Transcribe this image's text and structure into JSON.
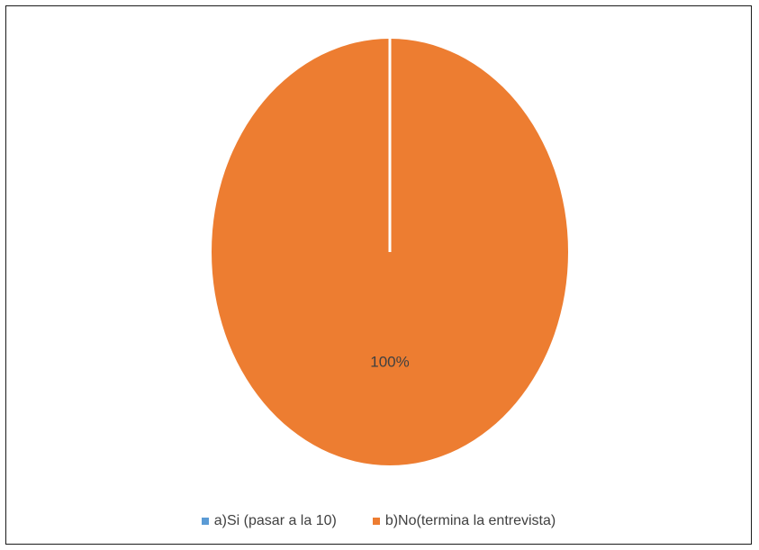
{
  "chart_data": {
    "type": "pie",
    "title": "",
    "categories": [
      "a)Si (pasar a la 10)",
      "b)No(termina la entrevista)"
    ],
    "values": [
      0,
      100
    ],
    "colors": [
      "#5B9BD5",
      "#ED7D31"
    ],
    "data_labels": [
      "",
      "100%"
    ],
    "legend_position": "bottom"
  },
  "legend": {
    "items": [
      {
        "label": "a)Si (pasar a la 10)",
        "color": "#5B9BD5"
      },
      {
        "label": "b)No(termina la entrevista)",
        "color": "#ED7D31"
      }
    ]
  }
}
